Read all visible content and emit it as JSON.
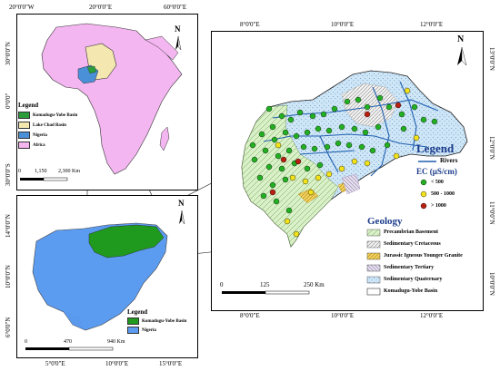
{
  "africa_panel": {
    "top_ticks": [
      "20°0'0\"W",
      "20°0'0\"E",
      "60°0'0\"E"
    ],
    "left_ticks": [
      "30°0'0\"N",
      "0°0'0\"",
      "30°0'0\"S"
    ],
    "north_label": "N",
    "legend": {
      "title": "Legend",
      "items": [
        {
          "label": "Komadugu-Yobe Basin",
          "color": "#2a9d3a"
        },
        {
          "label": "Lake Chad Basin",
          "color": "#f4e8b0"
        },
        {
          "label": "Nigeria",
          "color": "#4a90d9"
        },
        {
          "label": "Africa",
          "color": "#f4b6f0"
        }
      ]
    },
    "scale": {
      "labels": [
        "0",
        "1,150",
        "2,300 Km"
      ]
    }
  },
  "nigeria_panel": {
    "bottom_ticks": [
      "5°0'0\"E",
      "10°0'0\"E",
      "15°0'0\"E"
    ],
    "left_ticks": [
      "14°0'0\"N",
      "10°0'0\"N",
      "6°0'0\"N"
    ],
    "north_label": "N",
    "legend": {
      "title": "Legend",
      "items": [
        {
          "label": "Komadugu-Yobe Basin",
          "color": "#1f9a1f"
        },
        {
          "label": "Nigeria",
          "color": "#5b9bf0"
        }
      ]
    },
    "scale": {
      "labels": [
        "0",
        "470",
        "940 Km"
      ]
    }
  },
  "basin_panel": {
    "top_ticks": [
      "8°0'0\"E",
      "10°0'0\"E",
      "12°0'0\"E"
    ],
    "bottom_ticks": [
      "8°0'0\"E",
      "10°0'0\"E",
      "12°0'0\"E"
    ],
    "right_ticks": [
      "13°0'0\"N",
      "12°0'0\"N",
      "11°0'0\"N",
      "10°0'0\"N"
    ],
    "north_label": "N",
    "legend": {
      "title": "Legend",
      "rivers_label": "Rivers",
      "ec_title": "EC (μS/cm)",
      "ec_items": [
        {
          "label": "< 500",
          "color": "#22b022"
        },
        {
          "label": "500 - 1000",
          "color": "#f2e21c"
        },
        {
          "label": "> 1000",
          "color": "#b81f10"
        }
      ]
    },
    "geology": {
      "title": "Geology",
      "items": [
        {
          "label": "Precambrian Basement",
          "pattern": "basement"
        },
        {
          "label": "Sedimentary Cretaceous",
          "pattern": "cretaceous"
        },
        {
          "label": "Jurassic Igneous Younger Granite",
          "pattern": "granite"
        },
        {
          "label": "Sedimentary Tertiary",
          "pattern": "tertiary"
        },
        {
          "label": "Sedimentary Quaternary",
          "pattern": "quaternary"
        },
        {
          "label": "Komadugu-Yobe Basin",
          "pattern": "none"
        }
      ]
    },
    "scale": {
      "labels": [
        "0",
        "125",
        "250 Km"
      ]
    }
  }
}
